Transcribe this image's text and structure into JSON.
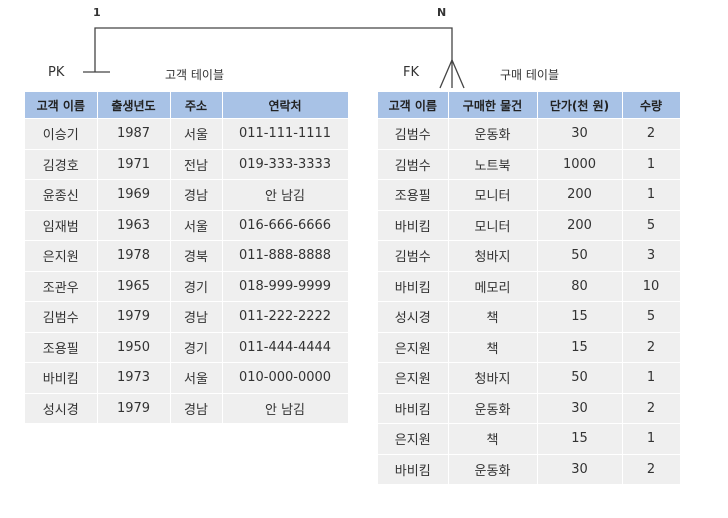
{
  "relation": {
    "one": "1",
    "many": "N",
    "pk": "PK",
    "fk": "FK"
  },
  "customer_table": {
    "title": "고객 테이블",
    "headers": [
      "고객 이름",
      "출생년도",
      "주소",
      "연락처"
    ],
    "rows": [
      [
        "이승기",
        1987,
        "서울",
        "011-111-1111"
      ],
      [
        "김경호",
        1971,
        "전남",
        "019-333-3333"
      ],
      [
        "윤종신",
        1969,
        "경남",
        "안 남김"
      ],
      [
        "임재범",
        1963,
        "서울",
        "016-666-6666"
      ],
      [
        "은지원",
        1978,
        "경북",
        "011-888-8888"
      ],
      [
        "조관우",
        1965,
        "경기",
        "018-999-9999"
      ],
      [
        "김범수",
        1979,
        "경남",
        "011-222-2222"
      ],
      [
        "조용필",
        1950,
        "경기",
        "011-444-4444"
      ],
      [
        "바비킴",
        1973,
        "서울",
        "010-000-0000"
      ],
      [
        "성시경",
        1979,
        "경남",
        "안 남김"
      ]
    ]
  },
  "purchase_table": {
    "title": "구매 테이블",
    "headers": [
      "고객 이름",
      "구매한 물건",
      "단가(천 원)",
      "수량"
    ],
    "rows": [
      [
        "김범수",
        "운동화",
        30,
        2
      ],
      [
        "김범수",
        "노트북",
        1000,
        1
      ],
      [
        "조용필",
        "모니터",
        200,
        1
      ],
      [
        "바비킴",
        "모니터",
        200,
        5
      ],
      [
        "김범수",
        "청바지",
        50,
        3
      ],
      [
        "바비킴",
        "메모리",
        80,
        10
      ],
      [
        "성시경",
        "책",
        15,
        5
      ],
      [
        "은지원",
        "책",
        15,
        2
      ],
      [
        "은지원",
        "청바지",
        50,
        1
      ],
      [
        "바비킴",
        "운동화",
        30,
        2
      ],
      [
        "은지원",
        "책",
        15,
        1
      ],
      [
        "바비킴",
        "운동화",
        30,
        2
      ]
    ]
  }
}
